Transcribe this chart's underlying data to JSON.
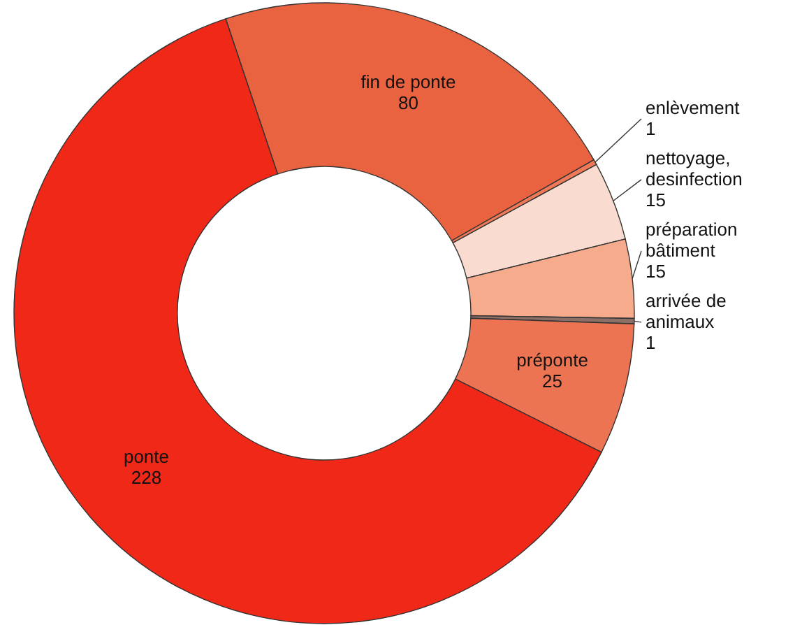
{
  "chart_data": {
    "type": "donut",
    "categories": [
      "fin de ponte",
      "enlèvement",
      "nettoyage, desinfection",
      "préparation bâtiment",
      "arrivée de animaux",
      "préponte",
      "ponte"
    ],
    "values": [
      80,
      1,
      15,
      15,
      1,
      25,
      228
    ],
    "colors": [
      "#ea6340",
      "#f07a58",
      "#fadbcf",
      "#f5ab8c",
      "#8c7068",
      "#ec7452",
      "#f02818"
    ],
    "data_labels": true
  }
}
